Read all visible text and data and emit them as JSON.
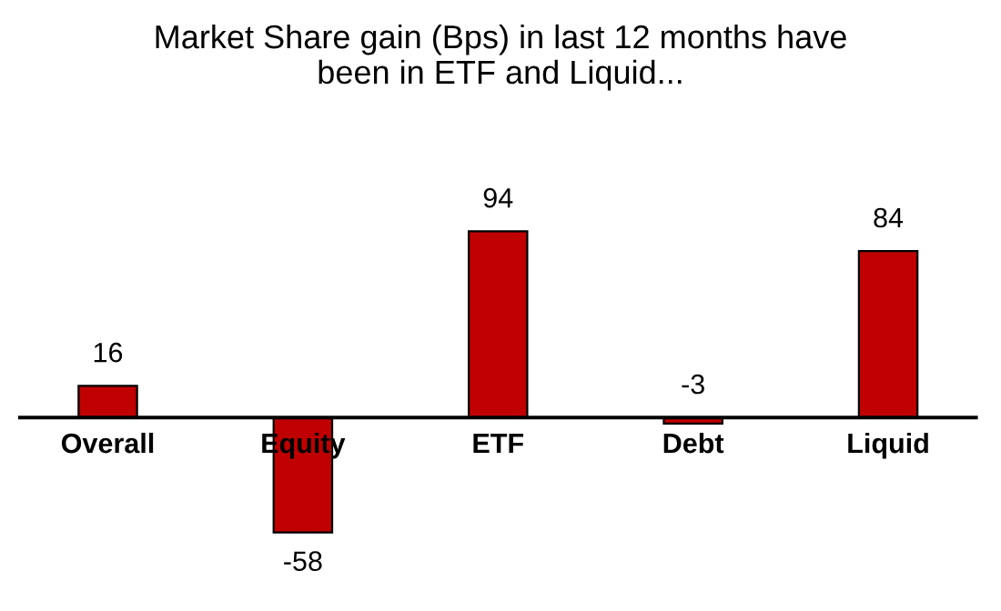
{
  "chart_data": {
    "type": "bar",
    "title": "Market Share gain (Bps) in last 12 months have\nbeen in ETF and Liquid...",
    "categories": [
      "Overall",
      "Equity",
      "ETF",
      "Debt",
      "Liquid"
    ],
    "values": [
      16,
      -58,
      94,
      -3,
      84
    ],
    "color": "#c00000",
    "data_labels": true,
    "grid": false,
    "legend": false
  }
}
